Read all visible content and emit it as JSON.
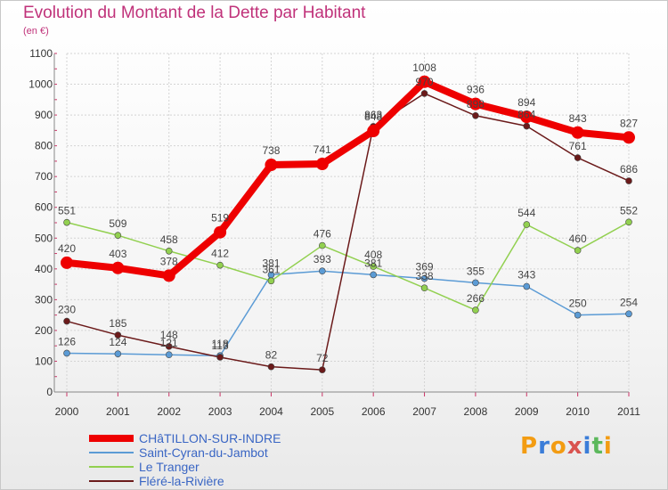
{
  "chart_data": {
    "type": "line",
    "title": "Evolution du Montant de la Dette par Habitant",
    "subtitle": "(en €)",
    "xlabel": "",
    "ylabel": "",
    "categories": [
      "2000",
      "2001",
      "2002",
      "2003",
      "2004",
      "2005",
      "2006",
      "2007",
      "2008",
      "2009",
      "2010",
      "2011"
    ],
    "ylim": [
      0,
      1100
    ],
    "yticks": [
      0,
      100,
      200,
      300,
      400,
      500,
      600,
      700,
      800,
      900,
      1000,
      1100
    ],
    "grid": true,
    "legend_position": "bottom-left",
    "series": [
      {
        "name": "CHâTILLON-SUR-INDRE",
        "color": "#ee0000",
        "values": [
          420,
          403,
          378,
          519,
          738,
          741,
          848,
          1008,
          936,
          894,
          843,
          827
        ]
      },
      {
        "name": "Saint-Cyran-du-Jambot",
        "color": "#5b9bd5",
        "values": [
          126,
          124,
          121,
          118,
          381,
          393,
          381,
          369,
          355,
          343,
          250,
          254
        ]
      },
      {
        "name": "Le Tranger",
        "color": "#92d050",
        "values": [
          551,
          509,
          458,
          412,
          361,
          476,
          408,
          338,
          266,
          544,
          460,
          552
        ]
      },
      {
        "name": "Fléré-la-Rivière",
        "color": "#6b1a1a",
        "values": [
          230,
          185,
          148,
          113,
          82,
          72,
          863,
          970,
          898,
          864,
          761,
          686
        ]
      }
    ]
  },
  "brand": {
    "logo_letters": [
      "P",
      "r",
      "o",
      "x",
      "i",
      "t",
      "i"
    ]
  }
}
